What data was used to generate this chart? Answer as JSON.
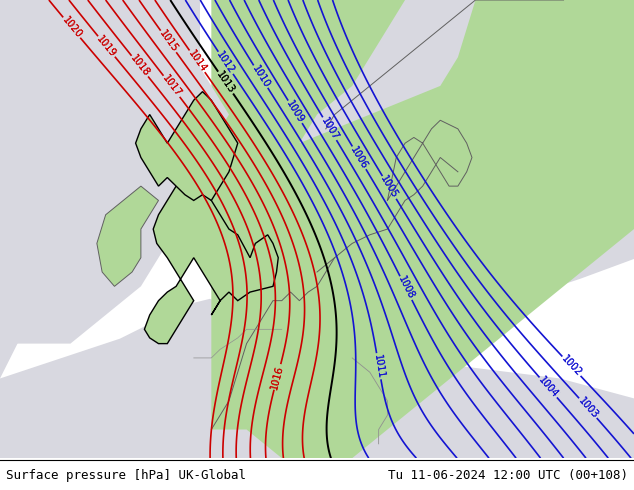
{
  "title_left": "Surface pressure [hPa] UK-Global",
  "title_right": "Tu 11-06-2024 12:00 UTC (00+108)",
  "fig_width": 6.34,
  "fig_height": 4.9,
  "dpi": 100,
  "footer_fontsize": 9,
  "contour_blue_color": "#1414d2",
  "contour_red_color": "#cc0000",
  "contour_black_color": "#000000",
  "label_fontsize": 7,
  "land_green": "#b0d898",
  "land_gray": "#c8c8c8",
  "sea_gray": "#d8d8e0",
  "sea_green": "#b8d8a0"
}
